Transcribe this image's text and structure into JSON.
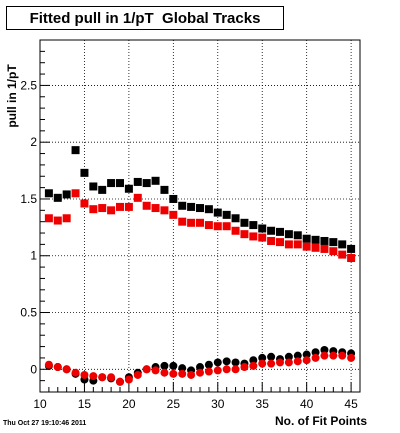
{
  "chart_data": {
    "type": "scatter",
    "title": "Fitted pull in 1/pT  Global Tracks",
    "xlabel": "No. of Fit Points",
    "ylabel": "pull in 1/pT",
    "xlim": [
      10,
      46
    ],
    "ylim": [
      -0.2,
      2.9
    ],
    "xticks": [
      10,
      15,
      20,
      25,
      30,
      35,
      40,
      45
    ],
    "xtick_labels": [
      "10",
      "15",
      "20",
      "25",
      "30",
      "35",
      "40",
      "45"
    ],
    "yticks": [
      0,
      0.5,
      1,
      1.5,
      2,
      2.5
    ],
    "ytick_labels": [
      "0",
      "0.5",
      "1",
      "1.5",
      "2",
      "2.5"
    ],
    "grid": true,
    "series": [
      {
        "marker": "square",
        "color": "#000000",
        "x": [
          11,
          12,
          13,
          14,
          15,
          16,
          17,
          18,
          19,
          20,
          21,
          22,
          23,
          24,
          25,
          26,
          27,
          28,
          29,
          30,
          31,
          32,
          33,
          34,
          35,
          36,
          37,
          38,
          39,
          40,
          41,
          42,
          43,
          44,
          45
        ],
        "y": [
          1.55,
          1.51,
          1.54,
          1.93,
          1.73,
          1.61,
          1.58,
          1.64,
          1.64,
          1.59,
          1.65,
          1.64,
          1.66,
          1.58,
          1.5,
          1.44,
          1.43,
          1.42,
          1.41,
          1.38,
          1.36,
          1.33,
          1.29,
          1.27,
          1.24,
          1.22,
          1.21,
          1.19,
          1.18,
          1.15,
          1.14,
          1.13,
          1.12,
          1.1,
          1.06
        ]
      },
      {
        "marker": "square",
        "color": "#ee0000",
        "x": [
          11,
          12,
          13,
          14,
          15,
          16,
          17,
          18,
          19,
          20,
          21,
          22,
          23,
          24,
          25,
          26,
          27,
          28,
          29,
          30,
          31,
          32,
          33,
          34,
          35,
          36,
          37,
          38,
          39,
          40,
          41,
          42,
          43,
          44,
          45
        ],
        "y": [
          1.33,
          1.31,
          1.33,
          1.55,
          1.46,
          1.41,
          1.42,
          1.4,
          1.43,
          1.43,
          1.51,
          1.44,
          1.42,
          1.4,
          1.36,
          1.3,
          1.29,
          1.29,
          1.27,
          1.26,
          1.26,
          1.22,
          1.19,
          1.17,
          1.16,
          1.13,
          1.12,
          1.1,
          1.1,
          1.08,
          1.07,
          1.06,
          1.04,
          1.01,
          0.98
        ]
      },
      {
        "marker": "circle",
        "color": "#000000",
        "x": [
          11,
          12,
          13,
          14,
          15,
          16,
          17,
          18,
          19,
          20,
          21,
          22,
          23,
          24,
          25,
          26,
          27,
          28,
          29,
          30,
          31,
          32,
          33,
          34,
          35,
          36,
          37,
          38,
          39,
          40,
          41,
          42,
          43,
          44,
          45
        ],
        "y": [
          0.03,
          0.02,
          0.0,
          -0.04,
          -0.09,
          -0.1,
          -0.07,
          -0.08,
          -0.11,
          -0.07,
          -0.03,
          0.0,
          0.02,
          0.03,
          0.03,
          0.01,
          -0.01,
          0.02,
          0.04,
          0.06,
          0.07,
          0.06,
          0.05,
          0.08,
          0.1,
          0.11,
          0.09,
          0.11,
          0.12,
          0.13,
          0.15,
          0.17,
          0.16,
          0.15,
          0.14
        ]
      },
      {
        "marker": "circle",
        "color": "#ee0000",
        "x": [
          11,
          12,
          13,
          14,
          15,
          16,
          17,
          18,
          19,
          20,
          21,
          22,
          23,
          24,
          25,
          26,
          27,
          28,
          29,
          30,
          31,
          32,
          33,
          34,
          35,
          36,
          37,
          38,
          39,
          40,
          41,
          42,
          43,
          44,
          45
        ],
        "y": [
          0.04,
          0.02,
          0.0,
          -0.03,
          -0.05,
          -0.06,
          -0.07,
          -0.07,
          -0.11,
          -0.09,
          -0.05,
          0.0,
          -0.01,
          -0.03,
          -0.04,
          -0.04,
          -0.05,
          -0.03,
          -0.02,
          -0.01,
          0.0,
          0.0,
          0.02,
          0.03,
          0.05,
          0.05,
          0.06,
          0.06,
          0.07,
          0.08,
          0.1,
          0.12,
          0.12,
          0.12,
          0.1
        ]
      }
    ]
  },
  "footer": "Thu Oct 27 19:10:46 2011"
}
